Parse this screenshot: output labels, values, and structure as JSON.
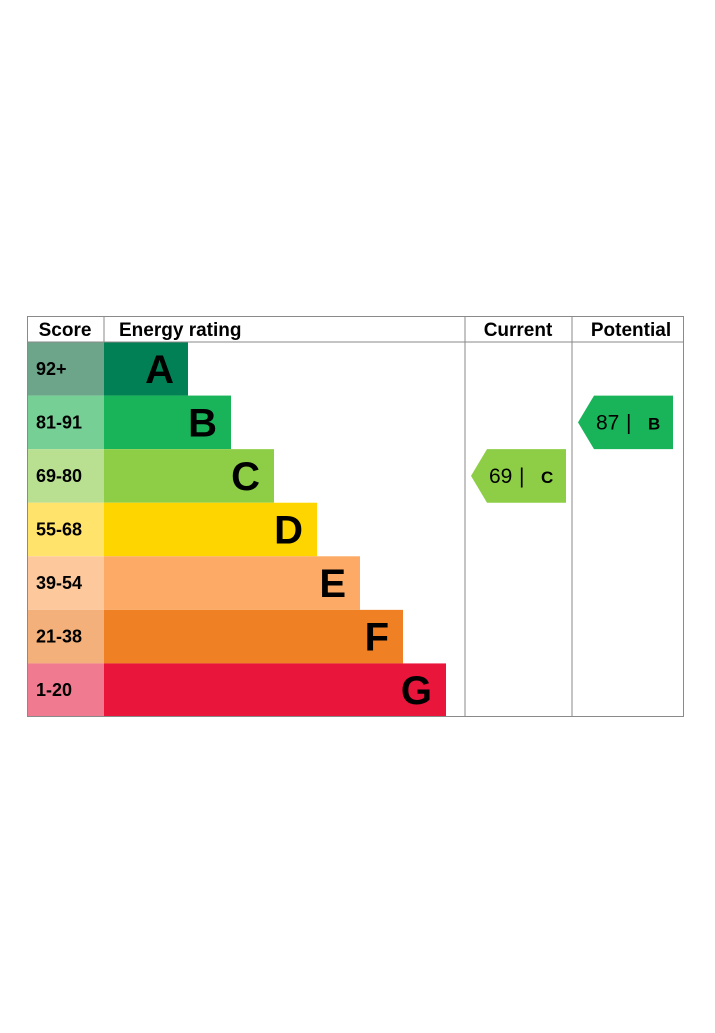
{
  "chart_data": {
    "type": "table",
    "headers": {
      "score": "Score",
      "energy_rating": "Energy rating",
      "current": "Current",
      "potential": "Potential"
    },
    "bands": [
      {
        "score": "92+",
        "letter": "A",
        "color": "#008054",
        "score_color": "#6ca58a"
      },
      {
        "score": "81-91",
        "letter": "B",
        "color": "#19b459",
        "score_color": "#76cf94"
      },
      {
        "score": "69-80",
        "letter": "C",
        "color": "#8dce46",
        "score_color": "#b9e090"
      },
      {
        "score": "55-68",
        "letter": "D",
        "color": "#ffd500",
        "score_color": "#ffe36b"
      },
      {
        "score": "39-54",
        "letter": "E",
        "color": "#fcaa65",
        "score_color": "#fdc99c"
      },
      {
        "score": "21-38",
        "letter": "F",
        "color": "#ef8023",
        "score_color": "#f4b07a"
      },
      {
        "score": "1-20",
        "letter": "G",
        "color": "#e9153b",
        "score_color": "#f07a8f"
      }
    ],
    "current": {
      "value": 69,
      "letter": "C",
      "separator": "|",
      "color": "#8dce46"
    },
    "potential": {
      "value": 87,
      "letter": "B",
      "separator": "|",
      "color": "#19b459"
    }
  }
}
